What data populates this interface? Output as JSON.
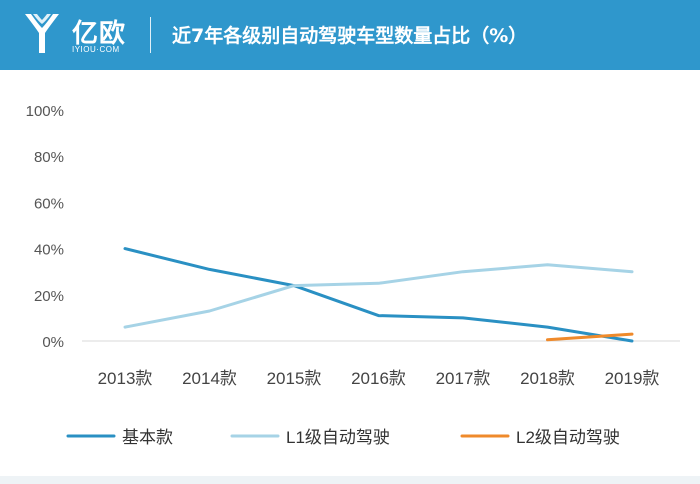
{
  "header": {
    "logo_cn": "亿欧",
    "logo_en": "IYIOU·COM",
    "title": "近7年各级别自动驾驶车型数量占比（%）"
  },
  "colors": {
    "header_bg": "#2f97cc",
    "series": [
      "#2a90c3",
      "#a6d3e6",
      "#ef8a2b"
    ]
  },
  "chart_data": {
    "type": "line",
    "title": "近7年各级别自动驾驶车型数量占比（%）",
    "xlabel": "",
    "ylabel": "",
    "categories": [
      "2013款",
      "2014款",
      "2015款",
      "2016款",
      "2017款",
      "2018款",
      "2019款"
    ],
    "ylim": [
      0,
      100
    ],
    "yticks": [
      "0%",
      "20%",
      "40%",
      "60%",
      "80%",
      "100%"
    ],
    "ytick_values": [
      0,
      20,
      40,
      60,
      80,
      100
    ],
    "grid": false,
    "legend_position": "bottom",
    "series": [
      {
        "name": "基本款",
        "color": "#2a90c3",
        "values": [
          40,
          31,
          24,
          11,
          10,
          6,
          0
        ]
      },
      {
        "name": "L1级自动驾驶",
        "color": "#a6d3e6",
        "values": [
          6,
          13,
          24,
          25,
          30,
          33,
          30
        ]
      },
      {
        "name": "L2级自动驾驶",
        "color": "#ef8a2b",
        "values": [
          null,
          null,
          null,
          null,
          null,
          0.5,
          3
        ]
      }
    ]
  }
}
